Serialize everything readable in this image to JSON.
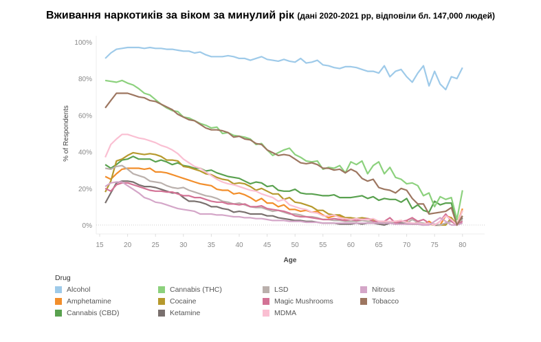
{
  "title": {
    "main": "Вживання наркотиків за віком за минулий рік",
    "sub": "(дані 2020-2021 рр, відповіли бл. 147,000 людей)"
  },
  "chart_data": {
    "type": "line",
    "xlabel": "Age",
    "ylabel": "% of Respondents",
    "xlim": [
      13,
      84
    ],
    "ylim": [
      -5,
      102
    ],
    "x_ticks": [
      15,
      20,
      25,
      30,
      35,
      40,
      45,
      50,
      55,
      60,
      65,
      70,
      75,
      80
    ],
    "y_ticks": [
      0,
      20,
      40,
      60,
      80,
      100
    ],
    "y_tick_labels": [
      "0%",
      "20%",
      "40%",
      "60%",
      "80%",
      "100%"
    ],
    "x_start": 16,
    "legend_title": "Drug",
    "legend_position": "bottom",
    "series": [
      {
        "name": "Alcohol",
        "color": "#9ecae9",
        "values": [
          91,
          94,
          96,
          96.5,
          97,
          97,
          97,
          96.5,
          97,
          96.5,
          96.5,
          96,
          96,
          95.5,
          95,
          95,
          94,
          94.5,
          93,
          92,
          92,
          92,
          92.5,
          92,
          91,
          91,
          90,
          91,
          92,
          90.5,
          90,
          89.5,
          90.5,
          89.5,
          89,
          91,
          88.5,
          89,
          90,
          87.5,
          87,
          86,
          85.5,
          86.5,
          86.5,
          86,
          85,
          84,
          84,
          83,
          87,
          81,
          84,
          85,
          81,
          78,
          83,
          87,
          76,
          84,
          77,
          74,
          81,
          80,
          86
        ]
      },
      {
        "name": "Amphetamine",
        "color": "#f28e2b",
        "values": [
          26.5,
          25,
          28,
          30.5,
          31,
          31,
          31,
          30.5,
          31,
          29,
          29,
          28.5,
          27.5,
          26.5,
          25.5,
          24.5,
          23.5,
          22.5,
          22,
          21.5,
          19.5,
          19,
          19,
          17,
          17.5,
          16.5,
          15,
          13,
          14.5,
          12,
          12,
          10,
          11,
          8.5,
          8.5,
          7.5,
          8,
          7,
          7.5,
          5.5,
          4,
          5,
          5,
          3,
          3,
          3.5,
          3,
          3,
          3,
          1.5,
          1,
          1.5,
          2,
          2.5,
          1,
          0.5,
          0.5,
          0,
          2,
          0,
          0,
          5,
          4,
          0,
          9
        ]
      },
      {
        "name": "Cannabis (CBD)",
        "color": "#59a14f",
        "values": [
          33,
          31,
          33,
          35.5,
          36,
          37.5,
          36,
          36,
          36,
          34.5,
          35.5,
          34.5,
          33,
          34,
          32.5,
          32,
          31,
          31,
          29.5,
          30,
          28.5,
          27.5,
          26.5,
          26,
          25.5,
          24,
          22.5,
          23.5,
          23,
          21,
          21.5,
          19,
          18.5,
          18.5,
          19.5,
          17.5,
          17,
          17,
          16.5,
          16,
          16,
          16.5,
          15,
          15,
          15,
          15.5,
          16,
          14.5,
          15.5,
          13.5,
          14.5,
          14,
          14,
          12.5,
          14.5,
          9,
          11,
          8,
          7,
          13,
          11,
          12,
          12,
          0,
          5
        ]
      },
      {
        "name": "Cannabis (THC)",
        "color": "#8cd17d",
        "values": [
          79,
          78.5,
          78,
          79,
          77.5,
          76.5,
          74.5,
          72,
          71,
          68.5,
          66,
          64,
          62.5,
          62,
          59,
          58.5,
          57,
          55.5,
          54.5,
          53,
          53.5,
          50,
          50.5,
          49,
          48.5,
          48,
          47,
          44,
          44.5,
          41,
          38,
          39.5,
          41,
          42,
          38.5,
          37,
          35,
          34.5,
          35,
          30.5,
          31.5,
          31,
          32.5,
          28.5,
          34.5,
          33,
          35,
          28,
          32.5,
          34.5,
          28,
          31.5,
          26,
          25,
          22.5,
          23,
          21.5,
          16,
          17.5,
          10,
          15.5,
          14,
          15,
          3,
          19
        ]
      },
      {
        "name": "Cocaine",
        "color": "#b6992d",
        "values": [
          18,
          24,
          35,
          36,
          38,
          39.5,
          39,
          38.5,
          39,
          38.5,
          37.5,
          35.5,
          35.5,
          35,
          32,
          31.5,
          30.5,
          29.5,
          28,
          27.5,
          26,
          25,
          24.5,
          22.5,
          23,
          22.5,
          21,
          19,
          20,
          18.5,
          17,
          17,
          14,
          15,
          12.5,
          12,
          11,
          10,
          8,
          8,
          6,
          5.5,
          5.5,
          4,
          4,
          3.5,
          4,
          3.5,
          3,
          2,
          1.5,
          1.5,
          2,
          2,
          2,
          0.5,
          1.5,
          0.5,
          0.5,
          0,
          0,
          0,
          4,
          0,
          8
        ]
      },
      {
        "name": "Ketamine",
        "color": "#79706e",
        "values": [
          12,
          17.5,
          23,
          24,
          24,
          23.5,
          22,
          21,
          21,
          20.5,
          19.5,
          18.5,
          17.5,
          17.5,
          15,
          13,
          13,
          12.5,
          11.5,
          10,
          10,
          9,
          8.5,
          7,
          7.5,
          7,
          6,
          6,
          6,
          5,
          5,
          4,
          3.5,
          3,
          2.5,
          2.5,
          2,
          2,
          1.5,
          1,
          1,
          1,
          0.5,
          0.5,
          0.5,
          1,
          0.5,
          1,
          1,
          0.5,
          0,
          1,
          0.5,
          1,
          0.5,
          0.5,
          0.5,
          0,
          1,
          0,
          0,
          1,
          2,
          0,
          4
        ]
      },
      {
        "name": "LSD",
        "color": "#bab0ac",
        "values": [
          31,
          30.5,
          32,
          32.5,
          30.5,
          28,
          27,
          26,
          24,
          23.5,
          23,
          21.5,
          20.5,
          20,
          20.5,
          19,
          18,
          17,
          16,
          15.5,
          14.5,
          13,
          12.5,
          11.5,
          12,
          11,
          10,
          9.5,
          9.5,
          8.5,
          7.5,
          8,
          7,
          6,
          6,
          5.5,
          4.5,
          4.5,
          4,
          3,
          3,
          2.5,
          2.5,
          2,
          2,
          2,
          2.5,
          2,
          2,
          1.5,
          1,
          1.5,
          1,
          2,
          1,
          3,
          1.5,
          1,
          0.5,
          0.5,
          0,
          1,
          2,
          0,
          3
        ]
      },
      {
        "name": "Magic Mushrooms",
        "color": "#d37295",
        "values": [
          20,
          18.5,
          22,
          23,
          23,
          22,
          21,
          20,
          19,
          18.5,
          18.5,
          18,
          18,
          17,
          16,
          16,
          15,
          15,
          14,
          13,
          12.5,
          12.5,
          11.5,
          11.5,
          11,
          11.5,
          10,
          10,
          10.5,
          9,
          8.5,
          8,
          7.5,
          6.5,
          5,
          4.5,
          4.5,
          4,
          3.5,
          3,
          3,
          3.5,
          3,
          2.5,
          3,
          2.5,
          3,
          3.5,
          2,
          2,
          2,
          4,
          1,
          2,
          2.5,
          4,
          2,
          3,
          1,
          0,
          2,
          6,
          2,
          0,
          2
        ]
      },
      {
        "name": "MDMA",
        "color": "#fabfd2",
        "values": [
          37,
          44,
          47,
          49.5,
          49.5,
          48.5,
          47.5,
          47,
          46,
          45,
          43.5,
          42.5,
          41,
          39,
          36,
          34,
          32,
          31,
          29,
          27,
          25,
          23.5,
          22.5,
          22,
          21,
          20,
          19,
          18.5,
          17,
          16,
          15,
          13,
          14,
          11,
          10,
          9,
          8.5,
          7,
          6.5,
          5,
          5,
          5.5,
          4,
          3.5,
          3,
          3.5,
          3,
          3,
          3.5,
          2,
          2,
          2,
          2,
          2.5,
          1.5,
          1,
          1,
          0.5,
          1,
          0,
          2,
          5,
          3,
          0,
          8
        ]
      },
      {
        "name": "Nitrous",
        "color": "#d4a6c8",
        "values": [
          21,
          23,
          23.5,
          23.5,
          21.5,
          19.5,
          17.5,
          15,
          14,
          12.5,
          12,
          11,
          10,
          9,
          8.5,
          8,
          7.5,
          6,
          6,
          6,
          5.5,
          5.5,
          5,
          4.5,
          4.5,
          4,
          4,
          3.5,
          3.5,
          3,
          2.5,
          2.5,
          2.5,
          2,
          2,
          2,
          1.5,
          1.5,
          1.5,
          1,
          1,
          1,
          1,
          1,
          1,
          1,
          1,
          1,
          1,
          1,
          1,
          1,
          0.5,
          0.5,
          0.5,
          0.5,
          0.5,
          0,
          0,
          2,
          4,
          2,
          0,
          0,
          1
        ]
      },
      {
        "name": "Tobacco",
        "color": "#9d7660",
        "values": [
          64,
          68,
          72,
          72,
          72,
          71,
          70,
          69.5,
          68,
          67.5,
          66,
          64.5,
          63,
          60.5,
          59,
          57.5,
          57,
          55,
          53,
          52,
          52,
          51.5,
          50.5,
          48,
          48.5,
          47,
          46.5,
          44.5,
          44,
          41,
          39.5,
          38,
          38.5,
          38,
          36,
          34,
          33.5,
          34,
          33,
          31,
          31,
          30,
          30.5,
          28.5,
          30.5,
          29,
          25.5,
          24,
          25,
          20.5,
          19.5,
          19,
          17.5,
          20,
          19,
          14.5,
          11.5,
          11.5,
          6,
          6.5,
          7,
          7.5,
          9.5,
          0,
          5
        ]
      }
    ],
    "legend_order": [
      "Alcohol",
      "Cannabis (THC)",
      "LSD",
      "Nitrous",
      "Amphetamine",
      "Cocaine",
      "Magic Mushrooms",
      "Tobacco",
      "Cannabis (CBD)",
      "Ketamine",
      "MDMA"
    ],
    "grid": false
  }
}
